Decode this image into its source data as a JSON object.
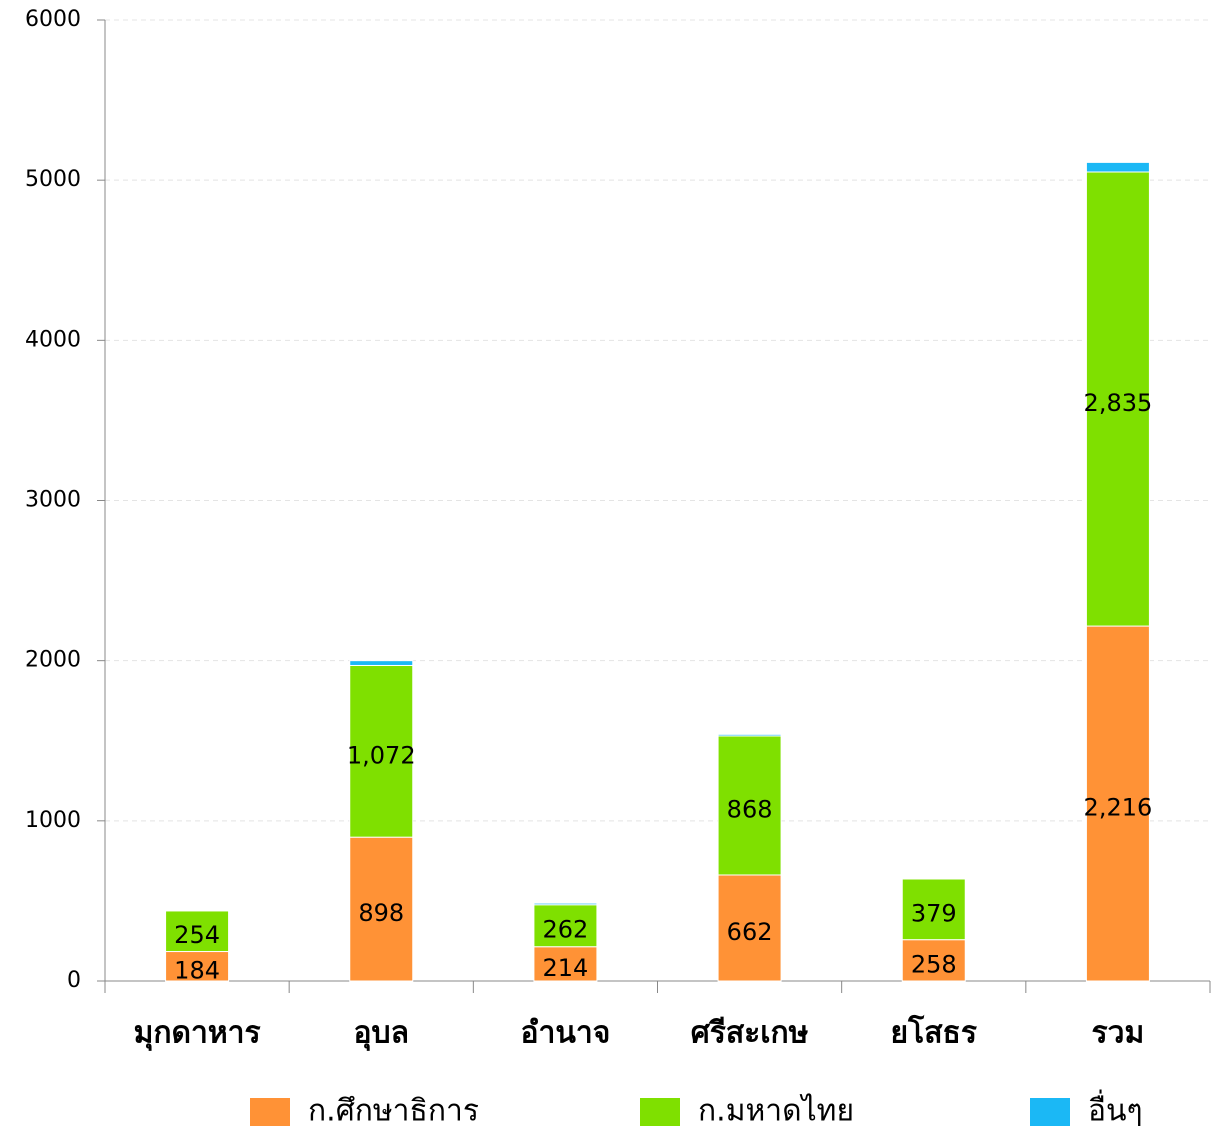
{
  "chart_data": {
    "type": "stacked_bar",
    "categories": [
      "มุกดาหาร",
      "อุบล",
      "อำนาจ",
      "ศรีสะเกษ",
      "ยโสธร",
      "รวม"
    ],
    "series": [
      {
        "name": "ก.ศึกษาธิการ",
        "color": "#ff9236",
        "values": [
          184,
          898,
          214,
          662,
          258,
          2216
        ],
        "value_labels": [
          "184",
          "898",
          "214",
          "662",
          "258",
          "2,216"
        ]
      },
      {
        "name": "ก.มหาดไทย",
        "color": "#7fe000",
        "values": [
          254,
          1072,
          262,
          868,
          379,
          2835
        ],
        "value_labels": [
          "254",
          "1,072",
          "262",
          "868",
          "379",
          "2,835"
        ]
      },
      {
        "name": "อื่นๆ",
        "color": "#1bb8f5",
        "values": [
          5,
          30,
          10,
          10,
          5,
          60
        ]
      }
    ],
    "ylim": [
      0,
      6000
    ],
    "yticks": [
      0,
      1000,
      2000,
      3000,
      4000,
      5000,
      6000
    ],
    "grid": true,
    "legend": "bottom"
  }
}
